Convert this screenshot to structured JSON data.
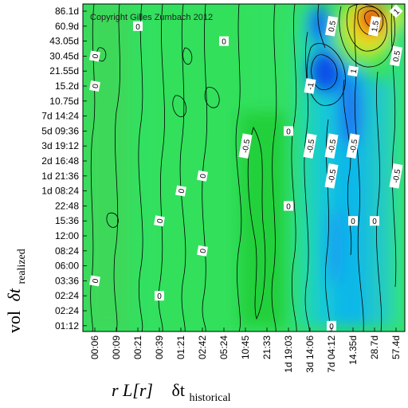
{
  "chart_data": {
    "type": "heatmap",
    "copyright": "Copyright Gilles Zumbach 2012",
    "x_ticks": [
      "00:06",
      "00:09",
      "00:21",
      "00:39",
      "01:21",
      "02:42",
      "05:24",
      "10:45",
      "21:33",
      "1d 19:03",
      "3d 14:06",
      "7d 04:12",
      "14.35d",
      "28.7d",
      "57.4d"
    ],
    "y_ticks": [
      "86.1d",
      "60.9d",
      "43.05d",
      "30.45d",
      "21.55d",
      "15.2d",
      "10.75d",
      "7d 14:24",
      "5d 09:36",
      "3d 19:12",
      "2d 16:48",
      "1d 21:36",
      "1d 08:24",
      "22:48",
      "15:36",
      "12:00",
      "08:24",
      "06:00",
      "03:36",
      "02:24",
      "02:24",
      "01:12"
    ],
    "y_axis_label": {
      "main": "vol",
      "delta": "δt",
      "sub": "realized"
    },
    "x_axis_label": {
      "main": "r L[r]",
      "delta": "δt",
      "sub": "historical"
    },
    "contour_labels": [
      {
        "text": "0",
        "x": "00:21",
        "y": "60.9d",
        "rot": 0
      },
      {
        "text": "0",
        "x": "00:06",
        "y": "30.45d",
        "rot": -80
      },
      {
        "text": "0",
        "x": "00:06",
        "y": "15.2d",
        "rot": -80
      },
      {
        "text": "0",
        "x": "05:24",
        "y": "43.05d",
        "rot": 0
      },
      {
        "text": "0",
        "x": "1d 19:03",
        "y": "5d 09:36",
        "rot": 0
      },
      {
        "text": "-0.5",
        "x": "10:45",
        "y": "3d 19:12",
        "rot": -80
      },
      {
        "text": "0",
        "x": "02:42",
        "y": "1d 21:36",
        "rot": -80
      },
      {
        "text": "0",
        "x": "01:21",
        "y": "1d 08:24",
        "rot": -80
      },
      {
        "text": "0",
        "x": "1d 19:03",
        "y": "22:48",
        "rot": 0
      },
      {
        "text": "0",
        "x": "00:39",
        "y": "15:36",
        "rot": -80
      },
      {
        "text": "0",
        "x": "02:42",
        "y": "08:24",
        "rot": -80
      },
      {
        "text": "0",
        "x": "00:06",
        "y": "03:36",
        "rot": -80
      },
      {
        "text": "0",
        "x": "00:39",
        "y": "02:24",
        "rot": 0
      },
      {
        "text": "0",
        "x": "7d 04:12",
        "y": "01:12",
        "rot": 0
      },
      {
        "text": "0.5",
        "x": "7d 04:12",
        "y": "60.9d",
        "rot": -80
      },
      {
        "text": "-1",
        "x": "3d 14:06",
        "y": "15.2d",
        "rot": -80
      },
      {
        "text": "-0.5",
        "x": "3d 14:06",
        "y": "3d 19:12",
        "rot": -80
      },
      {
        "text": "-0.5",
        "x": "7d 04:12",
        "y": "3d 19:12",
        "rot": -80
      },
      {
        "text": "-0.5",
        "x": "7d 04:12",
        "y": "1d 21:36",
        "rot": -80
      },
      {
        "text": "-0.5",
        "x": "14.35d",
        "y": "3d 19:12",
        "rot": -80
      },
      {
        "text": "1.5",
        "x": "28.7d",
        "y": "60.9d",
        "rot": -80
      },
      {
        "text": "1",
        "x": "14.35d",
        "y": "21.55d",
        "rot": -80
      },
      {
        "text": "0.5",
        "x": "57.4d",
        "y": "30.45d",
        "rot": -80
      },
      {
        "text": "1",
        "x": "57.4d",
        "y": "86.1d",
        "rot": -45
      },
      {
        "text": "-0.5",
        "x": "57.4d",
        "y": "1d 21:36",
        "rot": -80
      },
      {
        "text": "0",
        "x": "14.35d",
        "y": "15:36",
        "rot": 0
      },
      {
        "text": "0",
        "x": "28.7d",
        "y": "15:36",
        "rot": 0
      }
    ],
    "value_range": [
      -1.5,
      2.5
    ],
    "features": [
      {
        "kind": "peak",
        "x": "28.7d",
        "y": "60.9d",
        "value": 2.2
      },
      {
        "kind": "trough",
        "x": "3d 14:06",
        "y": "21.55d",
        "value": -1.3
      },
      {
        "kind": "trough",
        "x": "14.35d",
        "y": "10.75d",
        "value": -0.9
      }
    ]
  }
}
